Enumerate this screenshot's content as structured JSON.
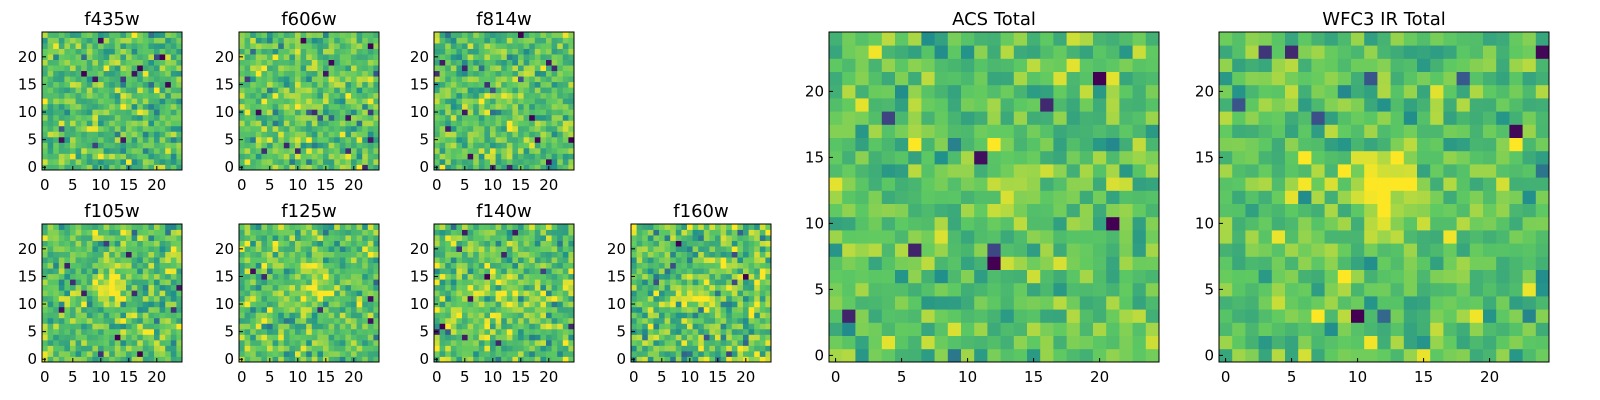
{
  "figure": {
    "colormap": [
      "#440154",
      "#3b528b",
      "#21918c",
      "#5ec962",
      "#fde725"
    ]
  },
  "chart_data": [
    {
      "type": "heatmap",
      "title": "f435w",
      "xticks": [
        0,
        5,
        10,
        15,
        20
      ],
      "yticks": [
        0,
        5,
        10,
        15,
        20
      ],
      "xlim": [
        0,
        25
      ],
      "ylim": [
        0,
        25
      ],
      "grid_size": 25,
      "peak": [
        12,
        12
      ],
      "peak_strength": 0.02,
      "noise": 0.12,
      "seed": 11,
      "grid": false
    },
    {
      "type": "heatmap",
      "title": "f606w",
      "xticks": [
        0,
        5,
        10,
        15,
        20
      ],
      "yticks": [
        0,
        5,
        10,
        15,
        20
      ],
      "xlim": [
        0,
        25
      ],
      "ylim": [
        0,
        25
      ],
      "grid_size": 25,
      "peak": [
        12,
        12
      ],
      "peak_strength": 0.12,
      "noise": 0.12,
      "seed": 23,
      "grid": false
    },
    {
      "type": "heatmap",
      "title": "f814w",
      "xticks": [
        0,
        5,
        10,
        15,
        20
      ],
      "yticks": [
        0,
        5,
        10,
        15,
        20
      ],
      "xlim": [
        0,
        25
      ],
      "ylim": [
        0,
        25
      ],
      "grid_size": 25,
      "peak": [
        12,
        13
      ],
      "peak_strength": 0.14,
      "noise": 0.12,
      "seed": 37,
      "grid": false
    },
    {
      "type": "heatmap",
      "title": "f105w",
      "xticks": [
        0,
        5,
        10,
        15,
        20
      ],
      "yticks": [
        0,
        5,
        10,
        15,
        20
      ],
      "xlim": [
        0,
        25
      ],
      "ylim": [
        0,
        25
      ],
      "grid_size": 25,
      "peak": [
        12,
        13
      ],
      "peak_strength": 0.2,
      "noise": 0.13,
      "seed": 41,
      "grid": false
    },
    {
      "type": "heatmap",
      "title": "f125w",
      "xticks": [
        0,
        5,
        10,
        15,
        20
      ],
      "yticks": [
        0,
        5,
        10,
        15,
        20
      ],
      "xlim": [
        0,
        25
      ],
      "ylim": [
        0,
        25
      ],
      "grid_size": 25,
      "peak": [
        13,
        13
      ],
      "peak_strength": 0.2,
      "noise": 0.13,
      "seed": 53,
      "grid": false
    },
    {
      "type": "heatmap",
      "title": "f140w",
      "xticks": [
        0,
        5,
        10,
        15,
        20
      ],
      "yticks": [
        0,
        5,
        10,
        15,
        20
      ],
      "xlim": [
        0,
        25
      ],
      "ylim": [
        0,
        25
      ],
      "grid_size": 25,
      "peak": [
        12,
        12
      ],
      "peak_strength": 0.2,
      "noise": 0.13,
      "seed": 67,
      "grid": false
    },
    {
      "type": "heatmap",
      "title": "f160w",
      "xticks": [
        0,
        5,
        10,
        15,
        20
      ],
      "yticks": [
        0,
        5,
        10,
        15,
        20
      ],
      "xlim": [
        0,
        25
      ],
      "ylim": [
        0,
        25
      ],
      "grid_size": 25,
      "peak": [
        12,
        12
      ],
      "peak_strength": 0.22,
      "noise": 0.16,
      "seed": 79,
      "grid": false
    },
    {
      "type": "heatmap",
      "title": "ACS Total",
      "xticks": [
        0,
        5,
        10,
        15,
        20
      ],
      "yticks": [
        0,
        5,
        10,
        15,
        20
      ],
      "xlim": [
        0,
        25
      ],
      "ylim": [
        0,
        25
      ],
      "grid_size": 25,
      "peak": [
        13,
        13
      ],
      "peak_strength": 0.16,
      "noise": 0.1,
      "seed": 97,
      "grid": false
    },
    {
      "type": "heatmap",
      "title": "WFC3 IR Total",
      "xticks": [
        0,
        5,
        10,
        15,
        20
      ],
      "yticks": [
        0,
        5,
        10,
        15,
        20
      ],
      "xlim": [
        0,
        25
      ],
      "ylim": [
        0,
        25
      ],
      "grid_size": 25,
      "peak": [
        12,
        13
      ],
      "peak_strength": 0.3,
      "noise": 0.11,
      "seed": 103,
      "grid": false
    }
  ]
}
